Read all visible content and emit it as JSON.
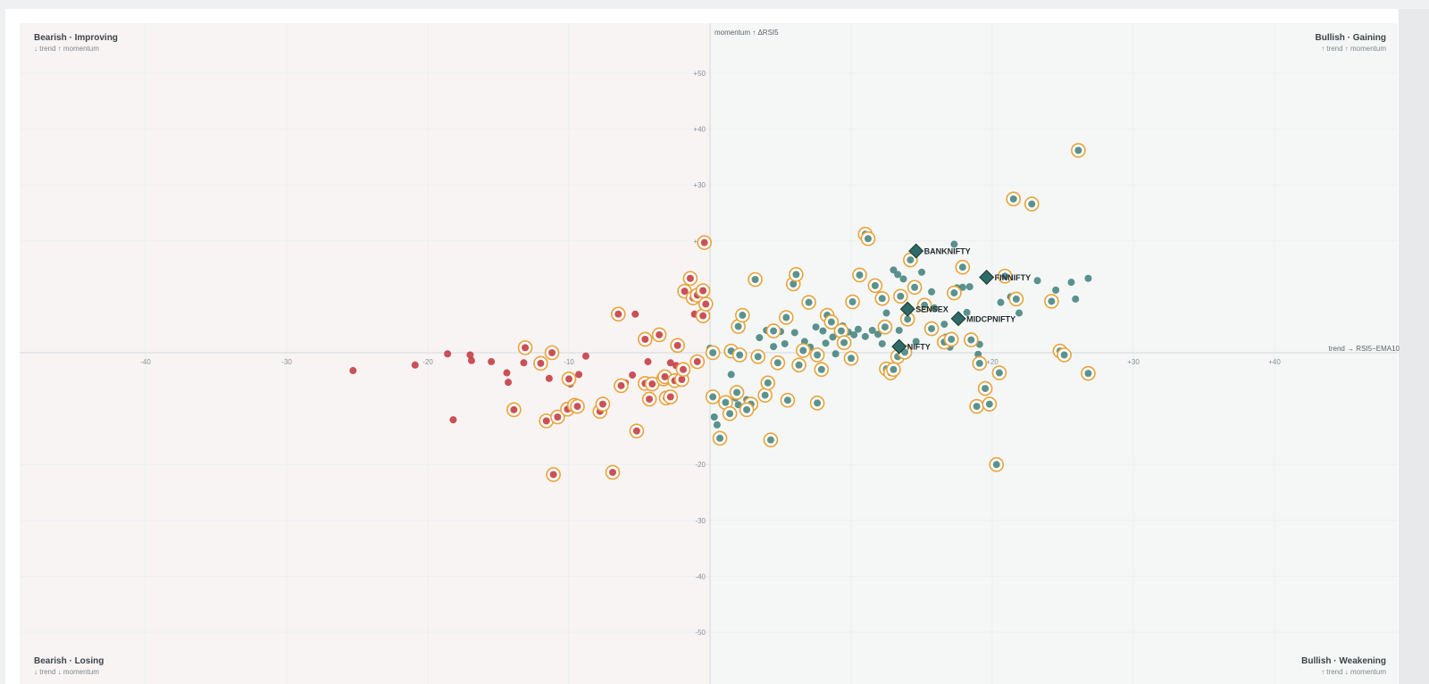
{
  "chart_data": {
    "type": "scatter",
    "x_axis_label": "trend → RSI5−EMA10",
    "y_axis_label": "momentum ↑ ΔRSI5",
    "xlim": [
      -49,
      49
    ],
    "ylim": [
      -58,
      58
    ],
    "x_ticks": [
      "-40",
      "-30",
      "-20",
      "-10",
      "+10",
      "+20",
      "+30",
      "+40"
    ],
    "y_ticks": [
      "+50",
      "+40",
      "+30",
      "+20",
      "-20",
      "-30",
      "-40",
      "-50"
    ],
    "grid": true,
    "quadrants": {
      "top_left": {
        "title": "Bearish · Improving",
        "subtitle": "↓ trend ↑ momentum"
      },
      "top_right": {
        "title": "Bullish · Gaining",
        "subtitle": "↑ trend ↑ momentum"
      },
      "bottom_left": {
        "title": "Bearish · Losing",
        "subtitle": "↓ trend ↓ momentum"
      },
      "bottom_right": {
        "title": "Bullish · Weakening",
        "subtitle": "↑ trend ↓ momentum"
      }
    },
    "colors": {
      "bearish_dot": "#c43e46",
      "bullish_dot": "#3e7f7a",
      "ring": "#e8a23a",
      "index_marker": "#2f6b66",
      "bearish_bg": "#f8f4f4",
      "bullish_bg": "#f4f7f6"
    },
    "indices": [
      {
        "name": "BANKNIFTY",
        "x": 14.6,
        "y": 18.2
      },
      {
        "name": "FINNIFTY",
        "x": 19.6,
        "y": 13.5
      },
      {
        "name": "SENSEX",
        "x": 14.0,
        "y": 7.8
      },
      {
        "name": "MIDCPNIFTY",
        "x": 17.6,
        "y": 6.1
      },
      {
        "name": "NIFTY",
        "x": 13.4,
        "y": 1.1
      }
    ],
    "points": [
      [
        -25.3,
        -3.2,
        0
      ],
      [
        -20.9,
        -2.2,
        0
      ],
      [
        -18.6,
        -0.2,
        0
      ],
      [
        -18.2,
        -12.0,
        0
      ],
      [
        -17.0,
        -0.4,
        0
      ],
      [
        -16.9,
        -1.4,
        0
      ],
      [
        -15.5,
        -1.6,
        0
      ],
      [
        -14.4,
        -3.6,
        0
      ],
      [
        -14.3,
        -5.3,
        0
      ],
      [
        -13.2,
        -1.8,
        0
      ],
      [
        -11.4,
        -4.6,
        0
      ],
      [
        -9.9,
        -5.6,
        0
      ],
      [
        -9.3,
        -3.9,
        0
      ],
      [
        -8.8,
        -0.6,
        0
      ],
      [
        -6.0,
        -5.4,
        0
      ],
      [
        -5.5,
        -4.0,
        0
      ],
      [
        -4.4,
        -1.6,
        0
      ],
      [
        -5.3,
        6.9,
        0
      ],
      [
        -2.8,
        -1.8,
        0
      ],
      [
        -2.4,
        -2.3,
        0
      ],
      [
        -1.5,
        13.6,
        0
      ],
      [
        -1.2,
        9.7,
        0
      ],
      [
        -1.1,
        6.9,
        0
      ],
      [
        -0.5,
        6.1,
        0
      ],
      [
        -0.6,
        9.2,
        0
      ],
      [
        -1.7,
        10.4,
        0
      ],
      [
        -13.9,
        -10.2,
        1
      ],
      [
        -13.1,
        0.9,
        1
      ],
      [
        -12.0,
        -1.9,
        1
      ],
      [
        -11.6,
        -12.2,
        1
      ],
      [
        -11.2,
        0.0,
        1
      ],
      [
        -11.1,
        -21.8,
        1
      ],
      [
        -10.8,
        -11.5,
        1
      ],
      [
        -10.1,
        -10.1,
        1
      ],
      [
        -10.0,
        -4.7,
        1
      ],
      [
        -9.6,
        -9.4,
        1
      ],
      [
        -9.4,
        -9.6,
        1
      ],
      [
        -7.8,
        -10.5,
        1
      ],
      [
        -7.6,
        -9.2,
        1
      ],
      [
        -6.9,
        -21.4,
        1
      ],
      [
        -6.3,
        -5.9,
        1
      ],
      [
        -6.5,
        6.9,
        1
      ],
      [
        -5.2,
        -14.0,
        1
      ],
      [
        -4.6,
        -5.5,
        1
      ],
      [
        -4.3,
        -8.3,
        1
      ],
      [
        -4.1,
        -5.6,
        1
      ],
      [
        -4.6,
        2.4,
        1
      ],
      [
        -3.6,
        3.2,
        1
      ],
      [
        -3.3,
        -4.7,
        1
      ],
      [
        -3.2,
        -4.3,
        1
      ],
      [
        -3.1,
        -8.1,
        1
      ],
      [
        -2.8,
        -7.9,
        1
      ],
      [
        -2.5,
        -5.0,
        1
      ],
      [
        -2.0,
        -4.8,
        1
      ],
      [
        -2.3,
        1.3,
        1
      ],
      [
        -1.8,
        11.0,
        1
      ],
      [
        -1.9,
        -3.0,
        1
      ],
      [
        -1.4,
        13.3,
        1
      ],
      [
        -1.2,
        9.8,
        1
      ],
      [
        -0.9,
        10.3,
        1
      ],
      [
        -0.5,
        6.6,
        1
      ],
      [
        -0.4,
        19.7,
        1
      ],
      [
        -0.3,
        8.7,
        1
      ],
      [
        -0.5,
        11.1,
        1
      ],
      [
        -0.9,
        -1.6,
        1
      ],
      [
        0.0,
        0.8,
        2
      ],
      [
        0.3,
        -11.5,
        2
      ],
      [
        0.5,
        -12.9,
        2
      ],
      [
        1.5,
        -3.9,
        2
      ],
      [
        1.8,
        -8.1,
        2
      ],
      [
        2.0,
        -9.3,
        2
      ],
      [
        2.6,
        -8.4,
        2
      ],
      [
        2.8,
        -10.2,
        2
      ],
      [
        3.5,
        2.7,
        2
      ],
      [
        4.0,
        4.0,
        2
      ],
      [
        4.5,
        1.1,
        2
      ],
      [
        5.0,
        3.8,
        2
      ],
      [
        5.3,
        1.6,
        2
      ],
      [
        6.0,
        3.6,
        2
      ],
      [
        6.7,
        2.0,
        2
      ],
      [
        7.1,
        1.0,
        2
      ],
      [
        7.5,
        4.6,
        2
      ],
      [
        8.0,
        3.9,
        2
      ],
      [
        8.2,
        1.7,
        2
      ],
      [
        8.7,
        2.8,
        2
      ],
      [
        8.9,
        -0.2,
        2
      ],
      [
        9.1,
        3.6,
        2
      ],
      [
        9.4,
        4.8,
        2
      ],
      [
        9.5,
        1.8,
        2
      ],
      [
        9.8,
        3.7,
        2
      ],
      [
        10.2,
        3.2,
        2
      ],
      [
        10.5,
        4.2,
        2
      ],
      [
        11.0,
        2.9,
        2
      ],
      [
        11.5,
        4.0,
        2
      ],
      [
        11.9,
        3.3,
        2
      ],
      [
        12.2,
        1.6,
        2
      ],
      [
        12.5,
        7.1,
        2
      ],
      [
        13.0,
        14.8,
        2
      ],
      [
        13.3,
        14.0,
        2
      ],
      [
        13.7,
        13.2,
        2
      ],
      [
        13.4,
        4.0,
        2
      ],
      [
        14.0,
        0.7,
        2
      ],
      [
        14.6,
        2.0,
        2
      ],
      [
        15.0,
        14.4,
        2
      ],
      [
        15.7,
        10.9,
        2
      ],
      [
        15.9,
        8.0,
        2
      ],
      [
        16.6,
        5.1,
        2
      ],
      [
        16.7,
        2.8,
        2
      ],
      [
        17.0,
        1.0,
        2
      ],
      [
        17.3,
        19.4,
        2
      ],
      [
        17.5,
        11.6,
        2
      ],
      [
        17.9,
        11.7,
        2
      ],
      [
        18.2,
        7.2,
        2
      ],
      [
        18.4,
        11.8,
        2
      ],
      [
        19.0,
        -0.3,
        2
      ],
      [
        19.1,
        1.5,
        2
      ],
      [
        19.3,
        -6.1,
        2
      ],
      [
        20.6,
        9.0,
        2
      ],
      [
        21.3,
        10.0,
        2
      ],
      [
        21.9,
        7.1,
        2
      ],
      [
        23.2,
        12.9,
        2
      ],
      [
        24.5,
        11.2,
        2
      ],
      [
        25.6,
        12.6,
        2
      ],
      [
        25.9,
        9.6,
        2
      ],
      [
        26.8,
        13.3,
        2
      ],
      [
        0.2,
        0.0,
        3
      ],
      [
        0.2,
        -7.9,
        3
      ],
      [
        0.7,
        -15.3,
        3
      ],
      [
        1.1,
        -8.9,
        3
      ],
      [
        1.4,
        -10.9,
        3
      ],
      [
        1.5,
        0.3,
        3
      ],
      [
        1.9,
        -7.1,
        3
      ],
      [
        2.0,
        4.7,
        3
      ],
      [
        2.1,
        -0.4,
        3
      ],
      [
        2.3,
        6.7,
        3
      ],
      [
        2.9,
        -9.2,
        3
      ],
      [
        2.6,
        -10.2,
        3
      ],
      [
        3.4,
        -0.7,
        3
      ],
      [
        3.2,
        13.1,
        3
      ],
      [
        3.9,
        -7.6,
        3
      ],
      [
        4.1,
        -5.4,
        3
      ],
      [
        4.3,
        -15.6,
        3
      ],
      [
        4.5,
        3.9,
        3
      ],
      [
        4.8,
        -1.8,
        3
      ],
      [
        5.4,
        6.3,
        3
      ],
      [
        5.9,
        12.3,
        3
      ],
      [
        6.3,
        -2.2,
        3
      ],
      [
        5.5,
        -8.5,
        3
      ],
      [
        6.1,
        14.0,
        3
      ],
      [
        6.6,
        0.4,
        3
      ],
      [
        7.0,
        9.0,
        3
      ],
      [
        7.6,
        -0.4,
        3
      ],
      [
        7.6,
        -9.0,
        3
      ],
      [
        7.9,
        -3.0,
        3
      ],
      [
        8.3,
        6.7,
        3
      ],
      [
        8.6,
        5.5,
        3
      ],
      [
        9.3,
        3.9,
        3
      ],
      [
        9.5,
        1.8,
        3
      ],
      [
        10.0,
        -1.0,
        3
      ],
      [
        10.1,
        9.1,
        3
      ],
      [
        10.6,
        13.9,
        3
      ],
      [
        11.0,
        21.2,
        3
      ],
      [
        11.2,
        20.4,
        3
      ],
      [
        11.7,
        12.0,
        3
      ],
      [
        12.2,
        9.7,
        3
      ],
      [
        12.4,
        4.6,
        3
      ],
      [
        12.5,
        -2.9,
        3
      ],
      [
        12.8,
        -3.6,
        3
      ],
      [
        13.0,
        -3.0,
        3
      ],
      [
        13.3,
        -0.7,
        3
      ],
      [
        13.5,
        10.1,
        3
      ],
      [
        13.8,
        0.1,
        3
      ],
      [
        14.0,
        6.0,
        3
      ],
      [
        14.2,
        16.6,
        3
      ],
      [
        14.5,
        11.7,
        3
      ],
      [
        15.2,
        8.5,
        3
      ],
      [
        15.7,
        4.3,
        3
      ],
      [
        16.6,
        1.9,
        3
      ],
      [
        17.1,
        2.4,
        3
      ],
      [
        17.3,
        10.7,
        3
      ],
      [
        17.9,
        15.3,
        3
      ],
      [
        18.5,
        2.3,
        3
      ],
      [
        18.9,
        -9.6,
        3
      ],
      [
        19.1,
        -1.9,
        3
      ],
      [
        19.5,
        -6.4,
        3
      ],
      [
        19.8,
        -9.2,
        3
      ],
      [
        20.3,
        -20.0,
        3
      ],
      [
        20.5,
        -3.6,
        3
      ],
      [
        20.9,
        13.7,
        3
      ],
      [
        21.5,
        27.5,
        3
      ],
      [
        21.7,
        9.6,
        3
      ],
      [
        22.8,
        26.6,
        3
      ],
      [
        24.2,
        9.2,
        3
      ],
      [
        24.8,
        0.3,
        3
      ],
      [
        25.1,
        -0.4,
        3
      ],
      [
        26.1,
        36.2,
        3
      ],
      [
        26.8,
        -3.7,
        3
      ]
    ]
  }
}
